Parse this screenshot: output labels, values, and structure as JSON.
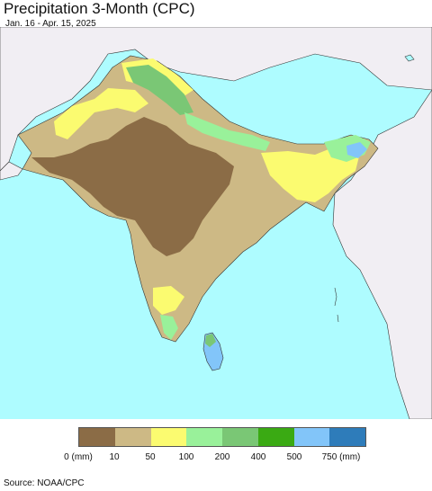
{
  "title": "Precipitation 3-Month (CPC)",
  "subtitle": "Jan. 16 - Apr. 15, 2025",
  "source": "Source: NOAA/CPC",
  "colors": {
    "ocean": "#aefcff",
    "outside_land": "#f1eef3",
    "class_0_10": "#8b6c46",
    "class_10_50": "#cdb985",
    "class_50_100": "#fbfb70",
    "class_100_200": "#99f19a",
    "class_200_400": "#7ac775",
    "class_400_500": "#3aaa13",
    "class_500_750": "#82c5f9",
    "class_750_plus": "#2e7cba"
  },
  "legend": {
    "swatches": [
      {
        "color": "#8b6c46"
      },
      {
        "color": "#cdb985"
      },
      {
        "color": "#fbfb70"
      },
      {
        "color": "#99f19a"
      },
      {
        "color": "#7ac775"
      },
      {
        "color": "#3aaa13"
      },
      {
        "color": "#82c5f9"
      },
      {
        "color": "#2e7cba"
      }
    ],
    "ticks": [
      "0 (mm)",
      "10",
      "50",
      "100",
      "200",
      "400",
      "500",
      "750 (mm)"
    ]
  }
}
